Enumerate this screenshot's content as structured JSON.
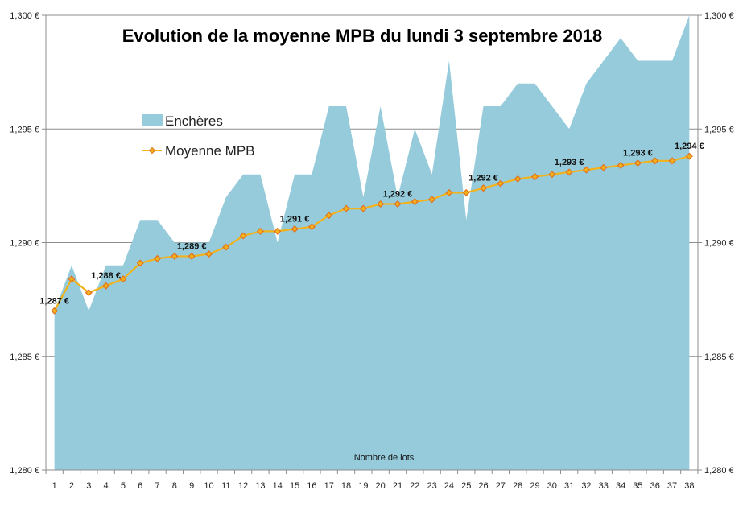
{
  "chart_data": {
    "type": "area",
    "title": "Evolution de la moyenne MPB du lundi 3 septembre 2018",
    "xlabel": "Nombre de lots",
    "ylabel": "",
    "x": [
      1,
      2,
      3,
      4,
      5,
      6,
      7,
      8,
      9,
      10,
      11,
      12,
      13,
      14,
      15,
      16,
      17,
      18,
      19,
      20,
      21,
      22,
      23,
      24,
      25,
      26,
      27,
      28,
      29,
      30,
      31,
      32,
      33,
      34,
      35,
      36,
      37,
      38
    ],
    "ylim": [
      1.28,
      1.3
    ],
    "y_ticks": [
      "1,280 €",
      "1,285 €",
      "1,290 €",
      "1,295 €",
      "1,300 €"
    ],
    "legend_position": "top-left",
    "grid": "horizontal",
    "series": [
      {
        "name": "Enchères",
        "type": "area",
        "color": "#96cbdb",
        "values": [
          1.287,
          1.289,
          1.287,
          1.289,
          1.289,
          1.291,
          1.291,
          1.29,
          1.29,
          1.29,
          1.292,
          1.293,
          1.293,
          1.29,
          1.293,
          1.293,
          1.296,
          1.296,
          1.292,
          1.296,
          1.292,
          1.295,
          1.293,
          1.298,
          1.291,
          1.296,
          1.296,
          1.297,
          1.297,
          1.296,
          1.295,
          1.297,
          1.298,
          1.299,
          1.298,
          1.298,
          1.298,
          1.3
        ]
      },
      {
        "name": "Moyenne MPB",
        "type": "line",
        "color": "#f2b21b",
        "marker_color": "#e2711d",
        "values": [
          1.287,
          1.2884,
          1.2878,
          1.2881,
          1.2884,
          1.2891,
          1.2893,
          1.2894,
          1.2894,
          1.2895,
          1.2898,
          1.2903,
          1.2905,
          1.2905,
          1.2906,
          1.2907,
          1.2912,
          1.2915,
          1.2915,
          1.2917,
          1.2917,
          1.2918,
          1.2919,
          1.2922,
          1.2922,
          1.2924,
          1.2926,
          1.2928,
          1.2929,
          1.293,
          1.2931,
          1.2932,
          1.2933,
          1.2934,
          1.2935,
          1.2936,
          1.2936,
          1.2938
        ]
      }
    ],
    "data_labels": [
      {
        "x": 1,
        "text": "1,287 €"
      },
      {
        "x": 4,
        "text": "1,288 €"
      },
      {
        "x": 9,
        "text": "1,289 €"
      },
      {
        "x": 15,
        "text": "1,291 €"
      },
      {
        "x": 21,
        "text": "1,292 €"
      },
      {
        "x": 26,
        "text": "1,292 €"
      },
      {
        "x": 31,
        "text": "1,293 €"
      },
      {
        "x": 35,
        "text": "1,293 €"
      },
      {
        "x": 38,
        "text": "1,294 €"
      }
    ]
  }
}
